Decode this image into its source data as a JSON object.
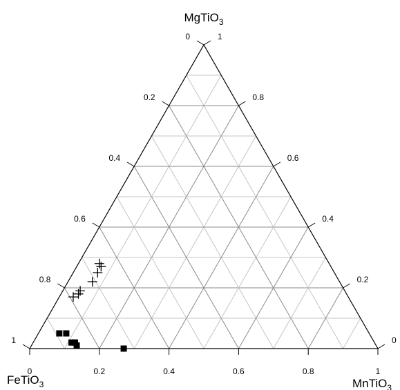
{
  "chart_data": {
    "type": "scatter",
    "subtype": "ternary",
    "apexes": {
      "top": {
        "name": "MgTiO",
        "sub": "3"
      },
      "left": {
        "name": "FeTiO",
        "sub": "3"
      },
      "right": {
        "name": "MnTiO",
        "sub": "3"
      }
    },
    "ticks": [
      0,
      0.2,
      0.4,
      0.6,
      0.8,
      1
    ],
    "tick_labels": {
      "bottom": [
        "0",
        "0.2",
        "0.4",
        "0.6",
        "0.8",
        "1"
      ],
      "left": [
        "1",
        "0.8",
        "0.6",
        "0.4",
        "0.2",
        "0"
      ],
      "right": [
        "0",
        "0.2",
        "0.4",
        "0.6",
        "0.8",
        "1"
      ]
    },
    "grid": true,
    "grid_step": 0.1,
    "series": [
      {
        "marker": "plus",
        "points": [
          {
            "mn": 0.06,
            "mg": 0.28
          },
          {
            "mn": 0.07,
            "mg": 0.27
          },
          {
            "mn": 0.07,
            "mg": 0.25
          },
          {
            "mn": 0.07,
            "mg": 0.22
          },
          {
            "mn": 0.05,
            "mg": 0.19
          },
          {
            "mn": 0.05,
            "mg": 0.18
          },
          {
            "mn": 0.04,
            "mg": 0.17
          }
        ]
      },
      {
        "marker": "square",
        "points": [
          {
            "mn": 0.08,
            "mg": 0.05
          },
          {
            "mn": 0.06,
            "mg": 0.05
          },
          {
            "mn": 0.11,
            "mg": 0.02
          },
          {
            "mn": 0.13,
            "mg": 0.01
          },
          {
            "mn": 0.12,
            "mg": 0.02
          },
          {
            "mn": 0.27,
            "mg": 0.0
          }
        ]
      }
    ]
  }
}
